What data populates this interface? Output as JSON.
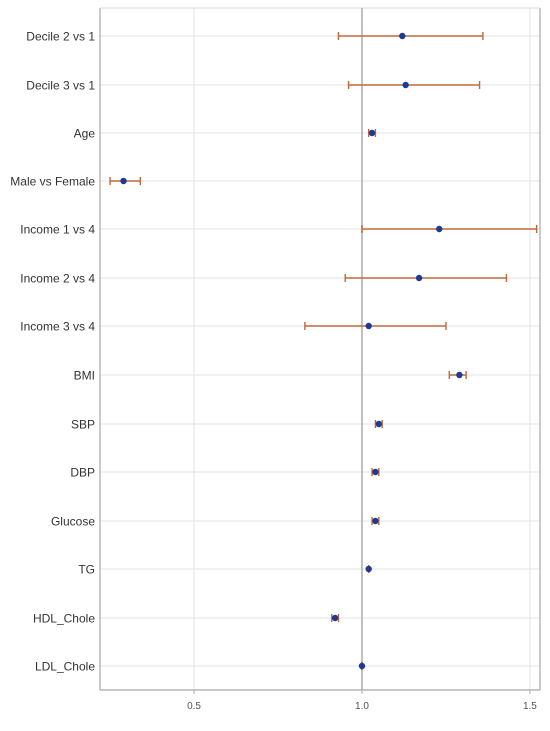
{
  "chart_data": {
    "type": "forest",
    "title": "",
    "xlabel": "",
    "ylabel": "",
    "xlim": [
      0.22,
      1.53
    ],
    "xticks": [
      0.5,
      1.0,
      1.5
    ],
    "xtick_labels": [
      "0.5",
      "1.0",
      "1.5"
    ],
    "reference_line": 1.0,
    "grid": true,
    "colors": {
      "point": "#1f3a93",
      "ci": "#c0683a",
      "grid": "#e3e3e3",
      "reference": "#b0b0b0",
      "axis": "#a8a8a8",
      "text": "#333333"
    },
    "rows": [
      {
        "label": "Decile 2 vs 1",
        "estimate": 1.12,
        "lower": 0.93,
        "upper": 1.36
      },
      {
        "label": "Decile 3 vs 1",
        "estimate": 1.13,
        "lower": 0.96,
        "upper": 1.35
      },
      {
        "label": "Age",
        "estimate": 1.03,
        "lower": 1.02,
        "upper": 1.04
      },
      {
        "label": "Male vs Female",
        "estimate": 0.29,
        "lower": 0.25,
        "upper": 0.34
      },
      {
        "label": "Income 1 vs 4",
        "estimate": 1.23,
        "lower": 1.0,
        "upper": 1.52
      },
      {
        "label": "Income 2 vs 4",
        "estimate": 1.17,
        "lower": 0.95,
        "upper": 1.43
      },
      {
        "label": "Income 3 vs 4",
        "estimate": 1.02,
        "lower": 0.83,
        "upper": 1.25
      },
      {
        "label": "BMI",
        "estimate": 1.29,
        "lower": 1.26,
        "upper": 1.31
      },
      {
        "label": "SBP",
        "estimate": 1.05,
        "lower": 1.04,
        "upper": 1.06
      },
      {
        "label": "DBP",
        "estimate": 1.04,
        "lower": 1.03,
        "upper": 1.05
      },
      {
        "label": "Glucose",
        "estimate": 1.04,
        "lower": 1.03,
        "upper": 1.05
      },
      {
        "label": "TG",
        "estimate": 1.02,
        "lower": 1.02,
        "upper": 1.02
      },
      {
        "label": "HDL_Chole",
        "estimate": 0.92,
        "lower": 0.91,
        "upper": 0.93
      },
      {
        "label": "LDL_Chole",
        "estimate": 1.0,
        "lower": 1.0,
        "upper": 1.0
      }
    ]
  }
}
